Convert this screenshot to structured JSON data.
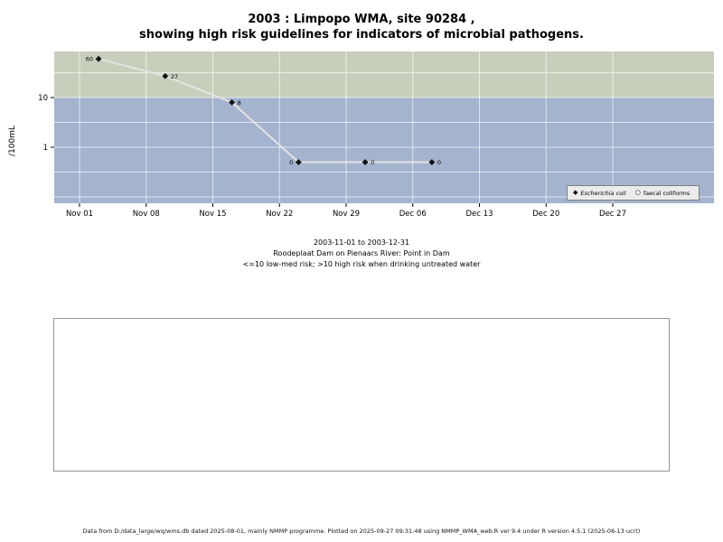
{
  "chart_data": {
    "type": "line",
    "title_lines": [
      "2003 : Limpopo WMA, site 90284 ,",
      "showing high risk guidelines for indicators of microbial pathogens."
    ],
    "ylabel": "/100mL",
    "y_scale": "log10",
    "y_ticks": [
      10,
      1
    ],
    "y_range_approx": [
      0.075,
      85
    ],
    "x_unit": "days since 2003-11-01",
    "x_tick_labels": [
      "Nov 01",
      "Nov 08",
      "Nov 15",
      "Nov 22",
      "Nov 29",
      "Dec 06",
      "Dec 13",
      "Dec 20",
      "Dec 27"
    ],
    "x_tick_interval_days": 7,
    "risk_threshold": 10,
    "zero_display_value": 0.5,
    "grid": "white major and minor gridlines over colored risk bands",
    "bands": [
      {
        "name": "high risk (>10)",
        "color": "#c7cfbc"
      },
      {
        "name": "low-med risk (<=10)",
        "color": "#a4b3ce"
      }
    ],
    "series": [
      {
        "name": "Escherichia coli",
        "marker": "filled-diamond",
        "line_color": "#e4e4e4",
        "points": [
          {
            "day": 2,
            "value": 60,
            "label_side": "left"
          },
          {
            "day": 9,
            "value": 27,
            "label_side": "right"
          },
          {
            "day": 16,
            "value": 8,
            "label_side": "right"
          },
          {
            "day": 23,
            "value": 0,
            "label_side": "left"
          },
          {
            "day": 30,
            "value": 0,
            "label_side": "right"
          },
          {
            "day": 37,
            "value": 0,
            "label_side": "right"
          }
        ]
      },
      {
        "name": "faecal coliforms",
        "marker": "open-circle",
        "line_color": "#e4e4e4",
        "points": []
      }
    ],
    "legend": {
      "position": "bottom-right",
      "entries": [
        {
          "label": "Escherichia coli",
          "marker": "filled-diamond",
          "italic": true
        },
        {
          "label": "faecal coliforms",
          "marker": "open-circle",
          "italic": false
        }
      ]
    },
    "annotations": [
      "2003-11-01 to 2003-12-31",
      "Roodeplaat Dam on Pienaars River: Point in Dam",
      "<=10 low-med risk; >10 high risk when drinking untreated water"
    ]
  },
  "footer_note": "Data from D:/data_large/wq/wms.db dated 2025-08-01, mainly NMMP programme. Plotted on 2025-09-27 09:31:48 using NMMP_WMA_web.R ver 9.4 under R version 4.5.1 (2025-06-13 ucrt)"
}
